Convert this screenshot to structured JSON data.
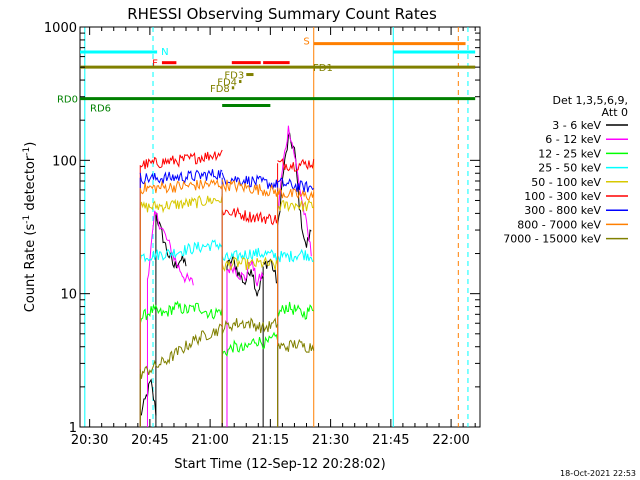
{
  "chart_data": {
    "type": "line",
    "title": "RHESSI Observing Summary Count Rates",
    "xlabel": "Start Time (12-Sep-12 20:28:02)",
    "ylabel_main": "Count Rate (s",
    "ylabel_sup1": "-1",
    "ylabel_mid": " detector",
    "ylabel_sup2": "-1",
    "ylabel_end": ")",
    "x_range_minutes": [
      20.46,
      22.12
    ],
    "y_range": [
      1,
      1000
    ],
    "y_scale": "log",
    "x_ticks": [
      {
        "t": 20.5,
        "label": "20:30"
      },
      {
        "t": 20.75,
        "label": "20:45"
      },
      {
        "t": 21.0,
        "label": "21:00"
      },
      {
        "t": 21.25,
        "label": "21:15"
      },
      {
        "t": 21.5,
        "label": "21:30"
      },
      {
        "t": 21.75,
        "label": "21:45"
      },
      {
        "t": 22.0,
        "label": "22:00"
      }
    ],
    "y_ticks": [
      {
        "v": 1,
        "label": "1"
      },
      {
        "v": 10,
        "label": "10"
      },
      {
        "v": 100,
        "label": "100"
      },
      {
        "v": 1000,
        "label": "1000"
      }
    ],
    "legend": {
      "placement": "right",
      "header1": "Det 1,3,5,6,9,",
      "header2": "Att 0"
    },
    "series": [
      {
        "name": "3 - 6 keV",
        "color": "#000000",
        "base": [
          1.2,
          1.2,
          1.2
        ],
        "segments": [
          {
            "t0": 20.71,
            "t1": 20.775,
            "v": [
              1.2,
              1.6,
              2.2,
              1.3
            ]
          },
          {
            "t0": 20.775,
            "t1": 20.9,
            "v": [
              40,
              28,
              20,
              16,
              18,
              17
            ]
          },
          {
            "t0": 21.07,
            "t1": 21.22,
            "v": [
              16,
              18,
              14,
              12,
              16,
              10,
              14
            ]
          },
          {
            "t0": 21.22,
            "t1": 21.28,
            "v": [
              16,
              18,
              12
            ]
          },
          {
            "t0": 21.28,
            "t1": 21.42,
            "v": [
              30,
              80,
              150,
              120,
              40,
              22,
              30
            ]
          }
        ]
      },
      {
        "name": "6 - 12 keV",
        "color": "#ff00ff",
        "segments": [
          {
            "t0": 20.74,
            "t1": 20.93,
            "v": [
              13,
              40,
              30,
              22,
              16,
              13,
              12
            ]
          },
          {
            "t0": 21.07,
            "t1": 21.22,
            "v": [
              15,
              16,
              14,
              13,
              18,
              12,
              14
            ]
          },
          {
            "t0": 21.28,
            "t1": 21.42,
            "v": [
              40,
              95,
              180,
              110,
              60,
              35,
              20
            ]
          }
        ]
      },
      {
        "name": "12 - 25 keV",
        "color": "#00ff00",
        "segments": [
          {
            "t0": 20.71,
            "t1": 21.05,
            "v": [
              6.5,
              7.5,
              7,
              8,
              7.5,
              8,
              7,
              7.5
            ]
          },
          {
            "t0": 21.05,
            "t1": 21.28,
            "v": [
              3.5,
              4,
              3.8,
              4.5,
              4.2,
              4.8
            ]
          },
          {
            "t0": 21.28,
            "t1": 21.43,
            "v": [
              7,
              8,
              7.5,
              7,
              8
            ]
          }
        ]
      },
      {
        "name": "25 - 50 keV",
        "color": "#00ffff",
        "segments": [
          {
            "t0": 20.71,
            "t1": 21.05,
            "v": [
              19,
              19.5,
              20,
              21,
              22,
              23,
              23.5
            ]
          },
          {
            "t0": 21.05,
            "t1": 21.28,
            "v": [
              18,
              19,
              20,
              20,
              19
            ]
          },
          {
            "t0": 21.28,
            "t1": 21.43,
            "v": [
              19,
              19,
              20,
              19
            ]
          }
        ]
      },
      {
        "name": "50 - 100 keV",
        "color": "#d7c800",
        "segments": [
          {
            "t0": 20.71,
            "t1": 21.05,
            "v": [
              44,
              45,
              46,
              47,
              48,
              50,
              51
            ]
          },
          {
            "t0": 21.05,
            "t1": 21.28,
            "v": [
              16,
              17,
              16.5,
              17,
              16
            ]
          },
          {
            "t0": 21.28,
            "t1": 21.43,
            "v": [
              45,
              46,
              47,
              45,
              46
            ]
          }
        ]
      },
      {
        "name": "100 - 300 keV",
        "color": "#ff0000",
        "segments": [
          {
            "t0": 20.71,
            "t1": 21.05,
            "v": [
              92,
              95,
              98,
              100,
              104,
              108,
              115
            ]
          },
          {
            "t0": 21.05,
            "t1": 21.28,
            "v": [
              42,
              40,
              38,
              37,
              36
            ]
          },
          {
            "t0": 21.28,
            "t1": 21.43,
            "v": [
              95,
              93,
              92,
              94,
              96
            ]
          }
        ]
      },
      {
        "name": "300 - 800 keV",
        "color": "#0000ff",
        "segments": [
          {
            "t0": 20.71,
            "t1": 21.05,
            "v": [
              74,
              73,
              74,
              75,
              76,
              78,
              80
            ]
          },
          {
            "t0": 21.05,
            "t1": 21.28,
            "v": [
              74,
              72,
              70,
              68,
              65
            ]
          },
          {
            "t0": 21.28,
            "t1": 21.43,
            "v": [
              68,
              66,
              64,
              63,
              62
            ]
          }
        ]
      },
      {
        "name": "800 - 7000 keV",
        "color": "#ff7f00",
        "base": [
          1.0,
          1.0
        ],
        "segments": [
          {
            "t0": 20.71,
            "t1": 21.05,
            "v": [
              62,
              62,
              63,
              64,
              65,
              66,
              67
            ]
          },
          {
            "t0": 21.05,
            "t1": 21.28,
            "v": [
              66,
              64,
              62,
              60,
              58
            ]
          },
          {
            "t0": 21.28,
            "t1": 21.43,
            "v": [
              58,
              56,
              55,
              54,
              55
            ]
          }
        ]
      },
      {
        "name": "7000 - 15000 keV",
        "color": "#808000",
        "segments": [
          {
            "t0": 20.71,
            "t1": 21.05,
            "v": [
              2.5,
              2.8,
              3.2,
              3.8,
              4.5,
              5,
              5.5
            ]
          },
          {
            "t0": 21.05,
            "t1": 21.28,
            "v": [
              5.5,
              6,
              6,
              5.5,
              6
            ]
          },
          {
            "t0": 21.28,
            "t1": 21.43,
            "v": [
              4,
              4,
              4.2,
              4,
              4
            ]
          }
        ]
      }
    ],
    "flags": [
      {
        "label": "N",
        "color": "#00ffff",
        "y": 650,
        "segments": [
          [
            20.46,
            20.78
          ],
          [
            21.76,
            22.1
          ]
        ]
      },
      {
        "label": "S",
        "color": "#ff7f00",
        "y": 750,
        "segments": [
          [
            21.43,
            22.06
          ]
        ]
      },
      {
        "label": "F",
        "color": "#ff0000",
        "y": 540,
        "segments": [
          [
            20.8,
            20.86
          ],
          [
            21.09,
            21.21
          ],
          [
            21.22,
            21.33
          ]
        ]
      },
      {
        "label": "FD1",
        "color": "#808000",
        "y": 500,
        "segments": [
          [
            20.46,
            22.1
          ]
        ]
      },
      {
        "label": "FD3",
        "color": "#808000",
        "y": 440,
        "segments": [
          [
            21.15,
            21.18
          ]
        ]
      },
      {
        "label": "FD4",
        "color": "#808000",
        "y": 390,
        "segments": [
          [
            21.12,
            21.13
          ]
        ]
      },
      {
        "label": "FD8",
        "color": "#808000",
        "y": 350,
        "segments": [
          [
            21.09,
            21.1
          ]
        ]
      },
      {
        "label": "RD0",
        "color": "#008000",
        "y": 290,
        "segments": [
          [
            20.46,
            22.1
          ]
        ]
      },
      {
        "label": "RD6",
        "color": "#008000",
        "y": 258,
        "segments": [
          [
            21.05,
            21.25
          ]
        ]
      }
    ],
    "vlines": [
      {
        "t": 20.763,
        "color": "#00ffff",
        "dash": true
      },
      {
        "t": 21.43,
        "color": "#ff7f00",
        "dash": false
      },
      {
        "t": 21.76,
        "color": "#00ffff",
        "dash": false
      },
      {
        "t": 22.03,
        "color": "#ff7f00",
        "dash": true
      },
      {
        "t": 22.07,
        "color": "#00ffff",
        "dash": true
      },
      {
        "t": 20.48,
        "color": "#00ffff",
        "dash": false
      }
    ],
    "timestamp": "18-Oct-2021 22:53"
  }
}
